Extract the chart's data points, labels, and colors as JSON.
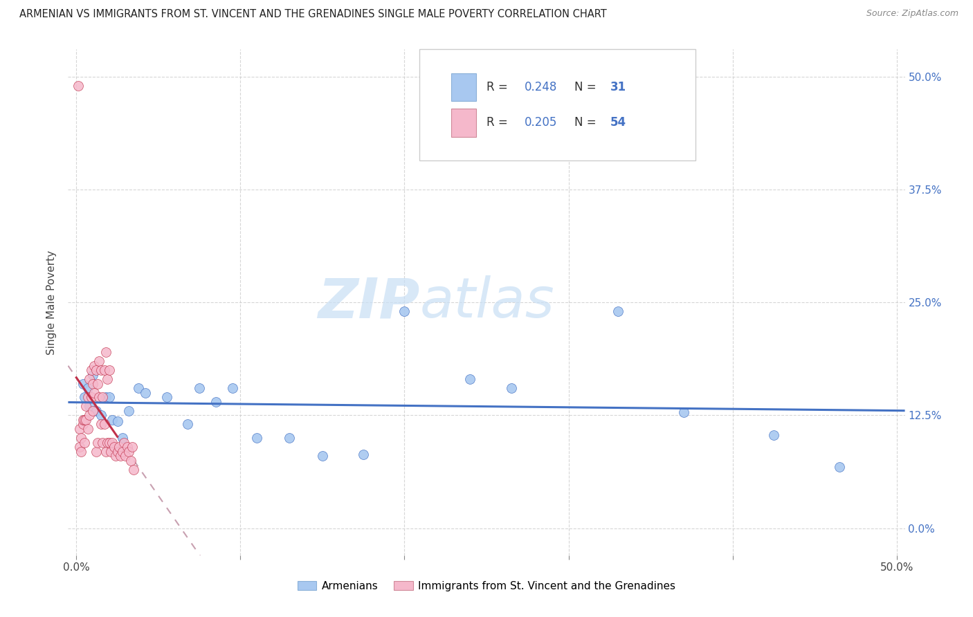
{
  "title": "ARMENIAN VS IMMIGRANTS FROM ST. VINCENT AND THE GRENADINES SINGLE MALE POVERTY CORRELATION CHART",
  "source": "Source: ZipAtlas.com",
  "ylabel": "Single Male Poverty",
  "ytick_labels": [
    "0.0%",
    "12.5%",
    "25.0%",
    "37.5%",
    "50.0%"
  ],
  "ytick_values": [
    0.0,
    0.125,
    0.25,
    0.375,
    0.5
  ],
  "xtick_values": [
    0.0,
    0.1,
    0.2,
    0.3,
    0.4,
    0.5
  ],
  "xmin": -0.005,
  "xmax": 0.505,
  "ymin": -0.03,
  "ymax": 0.53,
  "R_armenian": 0.248,
  "N_armenian": 31,
  "R_vincent": 0.205,
  "N_vincent": 54,
  "legend_label_armenian": "Armenians",
  "legend_label_vincent": "Immigrants from St. Vincent and the Grenadines",
  "color_armenian": "#a8c8f0",
  "color_vincent": "#f5b8cb",
  "color_line_armenian": "#4472c4",
  "color_line_vincent": "#c0304a",
  "color_trendline_vincent_dashed": "#c8a0b0",
  "watermark_zip": "ZIP",
  "watermark_atlas": "atlas",
  "watermark_color_zip": "#c8dff5",
  "watermark_color_atlas": "#c8dff5",
  "armenian_x": [
    0.004,
    0.005,
    0.007,
    0.008,
    0.01,
    0.012,
    0.015,
    0.018,
    0.02,
    0.022,
    0.025,
    0.028,
    0.032,
    0.038,
    0.042,
    0.055,
    0.068,
    0.075,
    0.085,
    0.095,
    0.11,
    0.13,
    0.15,
    0.175,
    0.2,
    0.24,
    0.265,
    0.33,
    0.37,
    0.425,
    0.465
  ],
  "armenian_y": [
    0.16,
    0.145,
    0.155,
    0.135,
    0.17,
    0.13,
    0.125,
    0.145,
    0.145,
    0.12,
    0.118,
    0.1,
    0.13,
    0.155,
    0.15,
    0.145,
    0.115,
    0.155,
    0.14,
    0.155,
    0.1,
    0.1,
    0.08,
    0.082,
    0.24,
    0.165,
    0.155,
    0.24,
    0.128,
    0.103,
    0.068
  ],
  "vincent_x": [
    0.001,
    0.002,
    0.002,
    0.003,
    0.003,
    0.004,
    0.004,
    0.005,
    0.005,
    0.006,
    0.006,
    0.007,
    0.007,
    0.008,
    0.008,
    0.009,
    0.009,
    0.01,
    0.01,
    0.011,
    0.011,
    0.012,
    0.012,
    0.013,
    0.013,
    0.014,
    0.014,
    0.015,
    0.015,
    0.016,
    0.016,
    0.017,
    0.017,
    0.018,
    0.018,
    0.019,
    0.019,
    0.02,
    0.02,
    0.021,
    0.022,
    0.023,
    0.024,
    0.025,
    0.026,
    0.027,
    0.028,
    0.029,
    0.03,
    0.031,
    0.032,
    0.033,
    0.034,
    0.035
  ],
  "vincent_y": [
    0.49,
    0.09,
    0.11,
    0.085,
    0.1,
    0.115,
    0.12,
    0.095,
    0.12,
    0.12,
    0.135,
    0.11,
    0.145,
    0.125,
    0.165,
    0.145,
    0.175,
    0.13,
    0.16,
    0.15,
    0.18,
    0.085,
    0.175,
    0.095,
    0.16,
    0.145,
    0.185,
    0.115,
    0.175,
    0.095,
    0.145,
    0.115,
    0.175,
    0.085,
    0.195,
    0.095,
    0.165,
    0.095,
    0.175,
    0.085,
    0.095,
    0.09,
    0.08,
    0.085,
    0.09,
    0.08,
    0.085,
    0.095,
    0.08,
    0.09,
    0.085,
    0.075,
    0.09,
    0.065
  ]
}
